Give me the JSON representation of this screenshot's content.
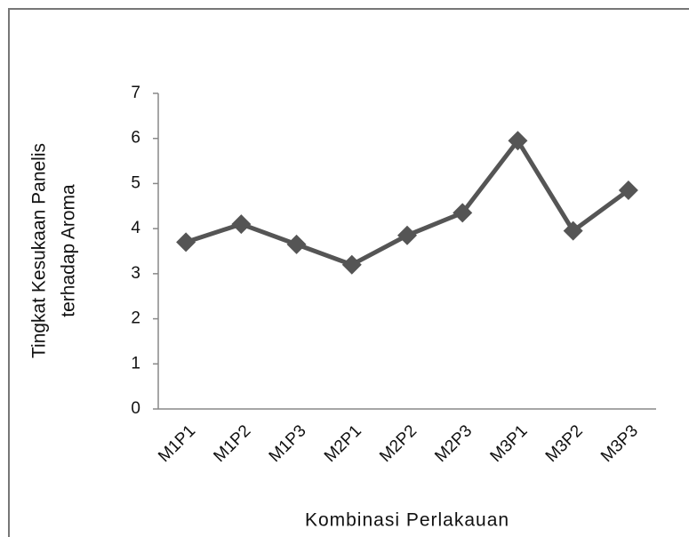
{
  "chart_data": {
    "type": "line",
    "y_label": [
      "Tingkat Kesukaan Panelis",
      "terhadap Aroma"
    ],
    "x_label": "Kombinasi Perlakauan",
    "categories": [
      "M1P1",
      "M1P2",
      "M1P3",
      "M2P1",
      "M2P2",
      "M2P3",
      "M3P1",
      "M3P2",
      "M3P3"
    ],
    "series": [
      {
        "color": "#555555",
        "values": [
          3.7,
          4.1,
          3.65,
          3.2,
          3.85,
          4.35,
          5.95,
          3.95,
          4.85
        ]
      }
    ],
    "ylim": [
      0,
      7
    ],
    "yticks": [
      0,
      1,
      2,
      3,
      4,
      5,
      6,
      7
    ],
    "grid": false
  }
}
